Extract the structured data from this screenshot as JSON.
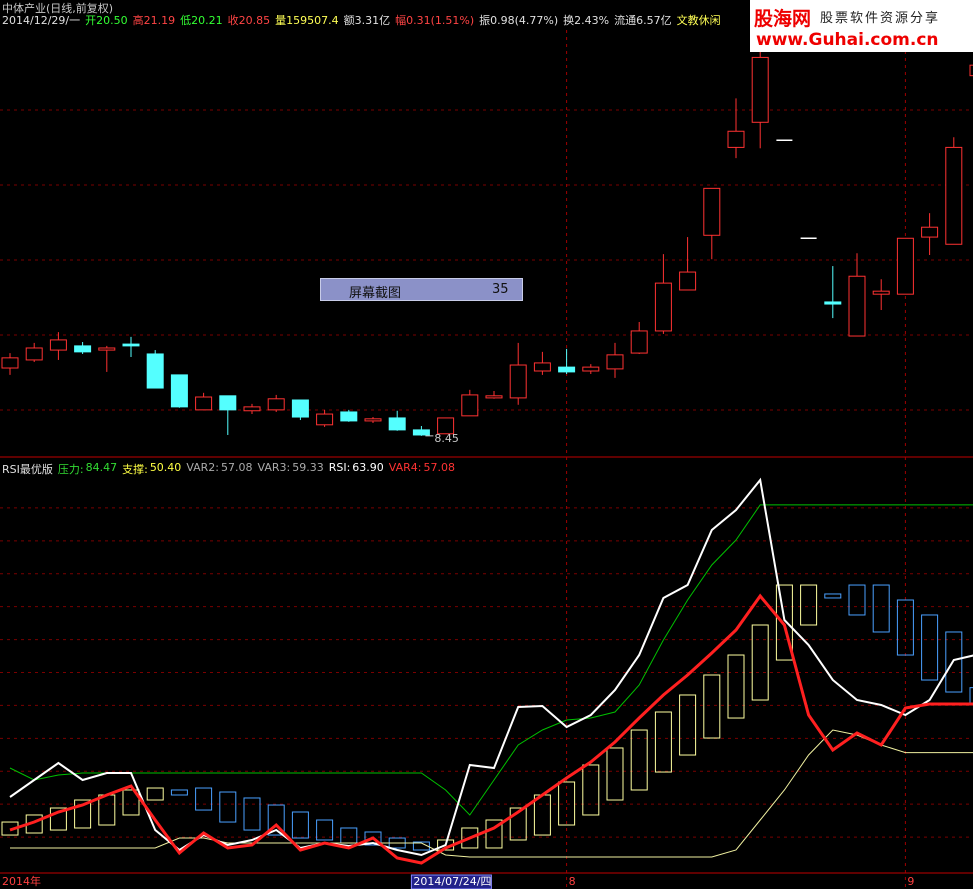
{
  "header": {
    "title": "中体产业(日线,前复权)",
    "items": [
      {
        "text": "2014/12/29/一",
        "color": "#e0e0e0"
      },
      {
        "text": "开20.50",
        "color": "#33ff33"
      },
      {
        "text": "高21.19",
        "color": "#ff4444"
      },
      {
        "text": "低20.21",
        "color": "#33ff33"
      },
      {
        "text": "收20.85",
        "color": "#ff4444"
      },
      {
        "text": "量159507.4",
        "color": "#ffff55"
      },
      {
        "text": "额3.31亿",
        "color": "#e0e0e0"
      },
      {
        "text": "幅0.31(1.51%)",
        "color": "#ff4444"
      },
      {
        "text": "振0.98(4.77%)",
        "color": "#e0e0e0"
      },
      {
        "text": "换2.43%",
        "color": "#e0e0e0"
      },
      {
        "text": "流通6.57亿",
        "color": "#e0e0e0"
      },
      {
        "text": "文教休闲",
        "color": "#ffff55"
      }
    ]
  },
  "watermark": {
    "name": "股海网",
    "tagline": "股票软件资源分享",
    "url": "www.Guhai.com.cn"
  },
  "overlay": {
    "label": "屏幕截图",
    "value": "35"
  },
  "chart_data": [
    {
      "type": "candlestick",
      "up_color": "#ff3232",
      "down_color": "#54ffff",
      "flat_color": "#ffffff",
      "ylim": [
        7.81,
        21.86
      ],
      "annotation": "8.45",
      "open": [
        10.72,
        10.99,
        11.32,
        11.46,
        11.32,
        11.52,
        11.19,
        10.49,
        9.32,
        9.79,
        9.29,
        9.32,
        9.65,
        8.82,
        9.25,
        8.95,
        9.05,
        8.65,
        8.52,
        9.12,
        9.72,
        9.72,
        10.62,
        10.75,
        10.62,
        10.69,
        11.22,
        11.96,
        13.33,
        15.16,
        18.1,
        18.94,
        18.34,
        15.06,
        12.93,
        11.79,
        13.19,
        13.19,
        15.1,
        14.86,
        20.5
      ],
      "high": [
        11.22,
        11.56,
        11.92,
        11.59,
        11.46,
        11.76,
        11.32,
        10.49,
        9.89,
        9.79,
        9.52,
        9.82,
        9.65,
        9.32,
        9.32,
        9.08,
        9.29,
        8.78,
        9.05,
        9.99,
        9.95,
        11.56,
        11.26,
        11.36,
        10.85,
        11.56,
        12.26,
        14.53,
        15.1,
        16.73,
        19.74,
        21.68,
        18.34,
        15.06,
        14.13,
        14.56,
        13.69,
        15.06,
        15.9,
        18.44,
        21.19
      ],
      "low": [
        10.49,
        10.92,
        10.99,
        11.19,
        10.59,
        11.09,
        10.05,
        9.39,
        9.32,
        8.48,
        9.18,
        9.25,
        8.98,
        8.75,
        8.92,
        8.88,
        8.62,
        8.45,
        8.52,
        9.12,
        9.69,
        9.49,
        10.49,
        10.52,
        10.52,
        10.39,
        11.19,
        11.86,
        13.33,
        14.36,
        17.74,
        18.07,
        18.34,
        15.06,
        12.39,
        11.79,
        12.66,
        13.19,
        14.5,
        14.86,
        20.21
      ],
      "close": [
        11.06,
        11.39,
        11.66,
        11.26,
        11.39,
        11.46,
        10.05,
        9.42,
        9.75,
        9.32,
        9.42,
        9.69,
        9.08,
        9.18,
        8.95,
        9.02,
        8.65,
        8.48,
        9.05,
        9.82,
        9.79,
        10.82,
        10.89,
        10.59,
        10.75,
        11.16,
        11.96,
        13.56,
        13.93,
        16.73,
        18.64,
        21.11,
        18.34,
        15.06,
        12.86,
        13.79,
        13.29,
        15.06,
        15.43,
        18.1,
        20.85
      ]
    },
    {
      "type": "line",
      "title": "RSI最优版",
      "ylim": [
        34.24,
        88.59
      ],
      "highlight": 17,
      "categories": [
        "2014年",
        null,
        null,
        null,
        null,
        null,
        null,
        null,
        null,
        null,
        null,
        null,
        null,
        null,
        null,
        null,
        null,
        "2014/07/24/四",
        null,
        null,
        null,
        null,
        null,
        "8",
        null,
        null,
        null,
        null,
        null,
        null,
        null,
        null,
        null,
        null,
        null,
        null,
        null,
        "9",
        null,
        null,
        null
      ],
      "legend_values": [
        "84.47",
        "50.40",
        "57.08",
        "59.33",
        "63.90",
        "57.08"
      ],
      "series": [
        {
          "name": "压力:",
          "color": "#00c000",
          "text_color": "#33dd33",
          "values": [
            48.27,
            46.62,
            47.31,
            47.59,
            47.59,
            47.59,
            47.59,
            47.59,
            47.59,
            47.59,
            47.59,
            47.59,
            47.59,
            47.59,
            47.59,
            47.59,
            47.59,
            47.59,
            45.25,
            41.81,
            46.62,
            51.44,
            53.5,
            54.88,
            55.15,
            55.98,
            59.69,
            65.89,
            71.39,
            76.21,
            79.65,
            84.47,
            84.47,
            84.47,
            84.47,
            84.47,
            84.47,
            84.47,
            84.47,
            84.47,
            84.47
          ]
        },
        {
          "name": "支撑:",
          "color": "#f0f0a0",
          "text_color": "#ffff44",
          "values": [
            37.27,
            37.27,
            37.27,
            37.27,
            37.27,
            37.27,
            37.27,
            38.64,
            38.64,
            37.95,
            37.95,
            37.95,
            37.95,
            37.95,
            37.95,
            37.95,
            37.95,
            37.95,
            36.3,
            36.03,
            36.03,
            36.03,
            36.03,
            36.03,
            36.03,
            36.03,
            36.03,
            36.03,
            36.03,
            36.03,
            36.99,
            41.12,
            45.25,
            50.06,
            53.5,
            52.81,
            51.44,
            50.4,
            50.4,
            50.4,
            50.4
          ]
        },
        {
          "name": "VAR2:",
          "color": "#ffffa0",
          "text_color": "#aaaaaa",
          "values": [
            40.84,
            41.81,
            42.77,
            43.87,
            44.56,
            45.25,
            45.52,
            44.56,
            42.49,
            40.84,
            39.74,
            39.05,
            38.64,
            38.37,
            37.95,
            37.68,
            37.27,
            36.99,
            38.37,
            40.02,
            41.12,
            42.77,
            44.56,
            46.35,
            48.69,
            51.03,
            53.5,
            55.98,
            58.32,
            61.07,
            63.82,
            67.95,
            73.45,
            73.45,
            71.67,
            69.33,
            66.99,
            63.82,
            60.38,
            58.73,
            57.08
          ]
        },
        {
          "name": "VAR3:",
          "color": "#4aa0ff",
          "text_color": "#aaaaaa",
          "values": [
            39.05,
            39.33,
            39.74,
            40.02,
            40.43,
            41.81,
            43.87,
            45.25,
            45.52,
            44.97,
            44.15,
            43.18,
            42.22,
            41.12,
            40.02,
            39.47,
            38.64,
            38.09,
            36.99,
            37.27,
            37.27,
            38.37,
            39.05,
            40.43,
            41.81,
            43.87,
            45.25,
            47.72,
            50.06,
            52.4,
            55.15,
            57.63,
            63.13,
            67.95,
            72.22,
            73.45,
            73.45,
            71.39,
            69.33,
            66.99,
            59.33
          ]
        },
        {
          "name": "RSI:",
          "color": "#ffffff",
          "text_color": "#ffffff",
          "values": [
            44.28,
            46.62,
            48.96,
            46.62,
            47.59,
            47.59,
            39.74,
            36.99,
            39.05,
            37.68,
            38.37,
            39.74,
            37.27,
            37.95,
            37.54,
            37.95,
            36.99,
            36.3,
            37.68,
            48.69,
            48.27,
            56.67,
            56.8,
            53.92,
            55.57,
            59.01,
            63.82,
            71.67,
            73.45,
            81.02,
            83.77,
            87.9,
            68.64,
            65.2,
            60.38,
            57.63,
            56.94,
            55.57,
            57.63,
            63.13,
            63.9
          ]
        },
        {
          "name": "VAR4:",
          "color": "#ff2020",
          "text_color": "#ff3333",
          "values": [
            39.74,
            40.84,
            42.22,
            43.18,
            44.56,
            45.8,
            41.12,
            36.58,
            39.33,
            37.27,
            37.68,
            40.43,
            36.99,
            37.95,
            37.27,
            38.64,
            35.89,
            35.2,
            37.27,
            38.64,
            40.02,
            42.22,
            44.56,
            46.9,
            49.1,
            51.85,
            55.15,
            58.32,
            61.07,
            64.1,
            67.26,
            71.94,
            67.95,
            55.57,
            50.75,
            53.09,
            51.44,
            56.53,
            57.08,
            57.08,
            57.08
          ]
        }
      ]
    }
  ]
}
